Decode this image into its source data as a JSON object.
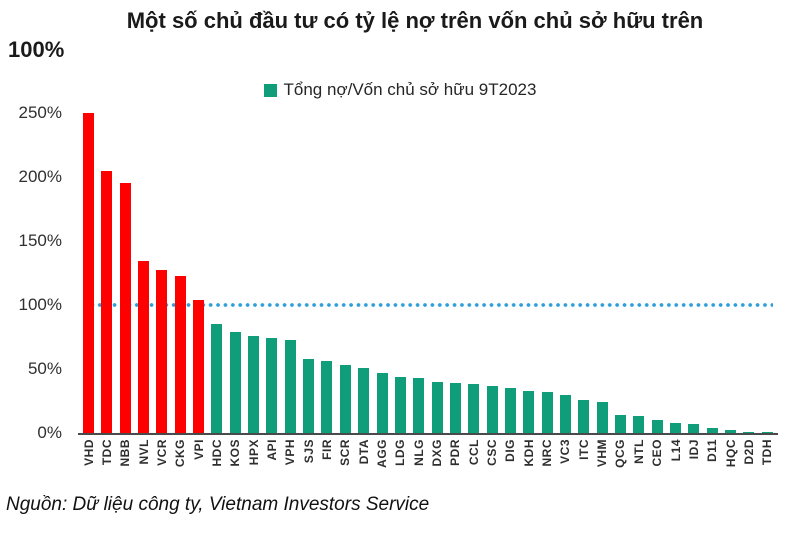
{
  "title": {
    "line1": "Một số chủ đầu tư có tỷ lệ nợ trên vốn chủ sở hữu trên",
    "line2": "100%"
  },
  "legend": {
    "label": "Tổng nợ/Vốn chủ sở hữu 9T2023",
    "swatch_color": "#109D7A"
  },
  "y_axis": {
    "tick_labels": [
      "250%",
      "200%",
      "150%",
      "100%",
      "50%",
      "0%"
    ]
  },
  "source": "Nguồn: Dữ liệu công ty, Vietnam Investors Service",
  "chart_data": {
    "type": "bar",
    "title": "Một số chủ đầu tư có tỷ lệ nợ trên vốn chủ sở hữu trên 100%",
    "categories": [
      "VHD",
      "TDC",
      "NBB",
      "NVL",
      "VCR",
      "CKG",
      "VPI",
      "HDC",
      "KOS",
      "HPX",
      "API",
      "VPH",
      "SJS",
      "FIR",
      "SCR",
      "DTA",
      "AGG",
      "LDG",
      "NLG",
      "DXG",
      "PDR",
      "CCL",
      "CSC",
      "DIG",
      "KDH",
      "NRC",
      "VC3",
      "ITC",
      "VHM",
      "QCG",
      "NTL",
      "CEO",
      "L14",
      "IDJ",
      "D11",
      "HQC",
      "D2D",
      "TDH"
    ],
    "series": [
      {
        "name": "Tổng nợ/Vốn chủ sở hữu 9T2023",
        "values": [
          250,
          205,
          195,
          134,
          127,
          123,
          104,
          85,
          79,
          76,
          74,
          73,
          58,
          56,
          53,
          51,
          47,
          44,
          43,
          40,
          39,
          38,
          37,
          35,
          33,
          32,
          30,
          26,
          24,
          14,
          13,
          10,
          8,
          7,
          4,
          2,
          1,
          0.5
        ]
      }
    ],
    "unit": "%",
    "xlabel": "",
    "ylabel": "",
    "ylim": [
      0,
      250
    ],
    "yticks": [
      0,
      50,
      100,
      150,
      200,
      250
    ],
    "grid": false,
    "legend_position": "top-center",
    "reference_line": {
      "value": 100,
      "style": "dotted",
      "color": "#2E9FDA"
    },
    "colors": {
      "above_100": "#FE0000",
      "below_100": "#109D7A"
    }
  }
}
